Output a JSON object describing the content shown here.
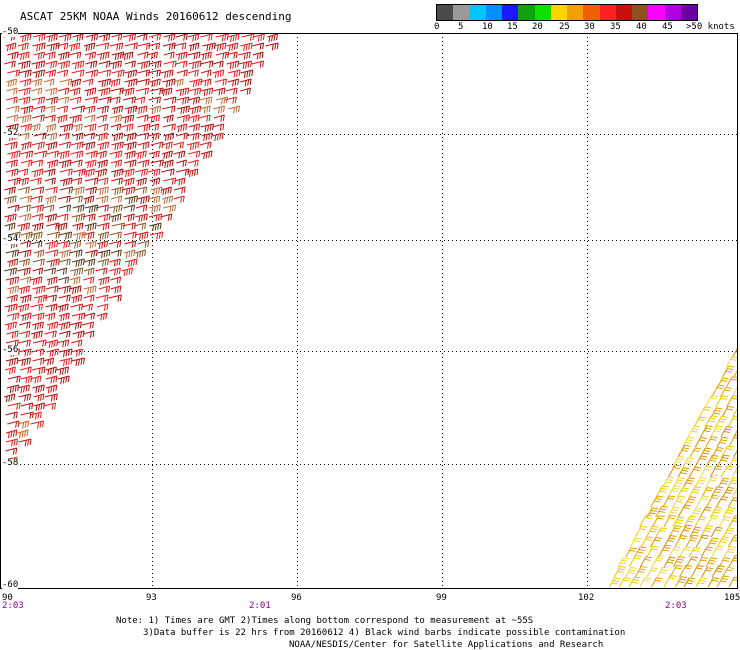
{
  "title": "ASCAT 25KM NOAA Winds 20160612 descending",
  "colorbar": {
    "colors": [
      "#4a4a4a",
      "#9a9a9a",
      "#00c8ff",
      "#0090ff",
      "#1a1aff",
      "#10a010",
      "#0fe000",
      "#ffd400",
      "#f0a000",
      "#f06000",
      "#ff2020",
      "#c81010",
      "#905020",
      "#ff00ff",
      "#b000e0",
      "#6a00a0"
    ],
    "labels": [
      "0",
      "5",
      "10",
      "15",
      "20",
      "25",
      "30",
      "35",
      "40",
      "45",
      ">50 knots"
    ]
  },
  "map": {
    "lon_ticks": [
      "90",
      "93",
      "96",
      "99",
      "102",
      "105"
    ],
    "lat_ticks": [
      "-50",
      "-52",
      "-54",
      "-56",
      "-58",
      "-60"
    ],
    "time_labels": [
      "2:03",
      "2:01",
      "2:03"
    ]
  },
  "notes": {
    "line1": "Note: 1) Times are GMT 2)Times along bottom correspond to measurement at ~55S",
    "line2": "3)Data buffer is 22 hrs from 20160612 4) Black wind barbs indicate possible contamination",
    "line3": "NOAA/NESDIS/Center for Satellite Applications and Research"
  },
  "barb_palette": {
    "left_swath": [
      "#d01818",
      "#e82020",
      "#b01010",
      "#c07040",
      "#8a5a2a",
      "#5a3a1a",
      "#e06010"
    ],
    "right_swath": [
      "#f0c800",
      "#e8a000",
      "#f0d840",
      "#d89000"
    ]
  }
}
